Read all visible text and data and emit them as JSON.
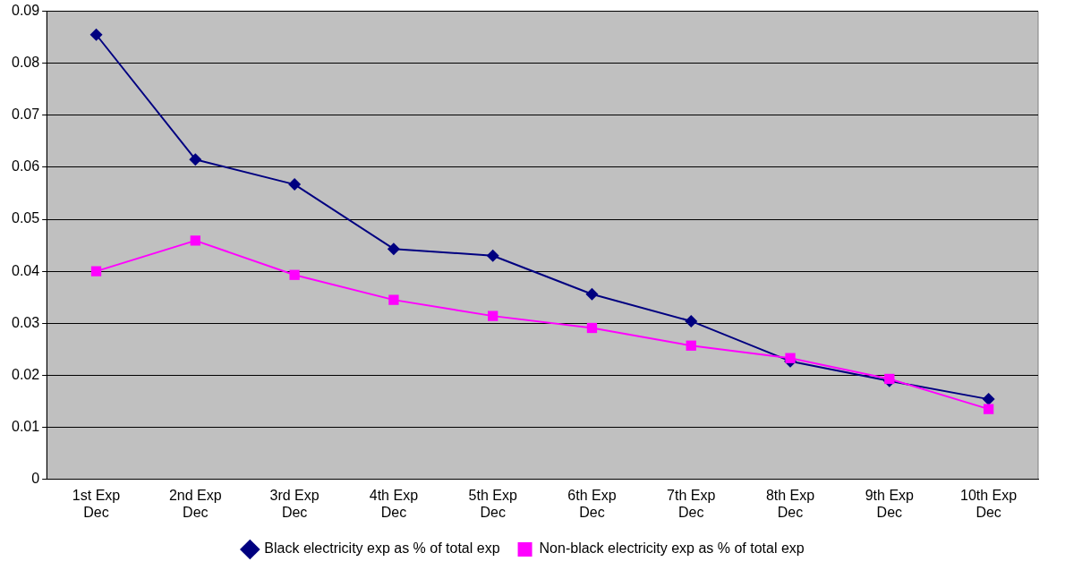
{
  "chart_data": {
    "type": "line",
    "categories": [
      "1st Exp Dec",
      "2nd Exp Dec",
      "3rd Exp Dec",
      "4th Exp Dec",
      "5th Exp Dec",
      "6th Exp Dec",
      "7th Exp Dec",
      "8th Exp Dec",
      "9th Exp Dec",
      "10th Exp Dec"
    ],
    "series": [
      {
        "name": "Black electricity exp as % of total exp",
        "color": "#000080",
        "marker": "diamond",
        "values": [
          0.0855,
          0.0615,
          0.0567,
          0.0443,
          0.043,
          0.0356,
          0.0304,
          0.0227,
          0.0189,
          0.0154
        ]
      },
      {
        "name": "Non-black electricity exp as % of total exp",
        "color": "#ff00ff",
        "marker": "square",
        "values": [
          0.04,
          0.0459,
          0.0393,
          0.0345,
          0.0314,
          0.0291,
          0.0257,
          0.0233,
          0.0193,
          0.0135
        ]
      }
    ],
    "ylim": [
      0,
      0.09
    ],
    "yticks": [
      0,
      0.01,
      0.02,
      0.03,
      0.04,
      0.05,
      0.06,
      0.07,
      0.08,
      0.09
    ],
    "grid": "y",
    "legend": "bottom",
    "line_style": "solid"
  }
}
